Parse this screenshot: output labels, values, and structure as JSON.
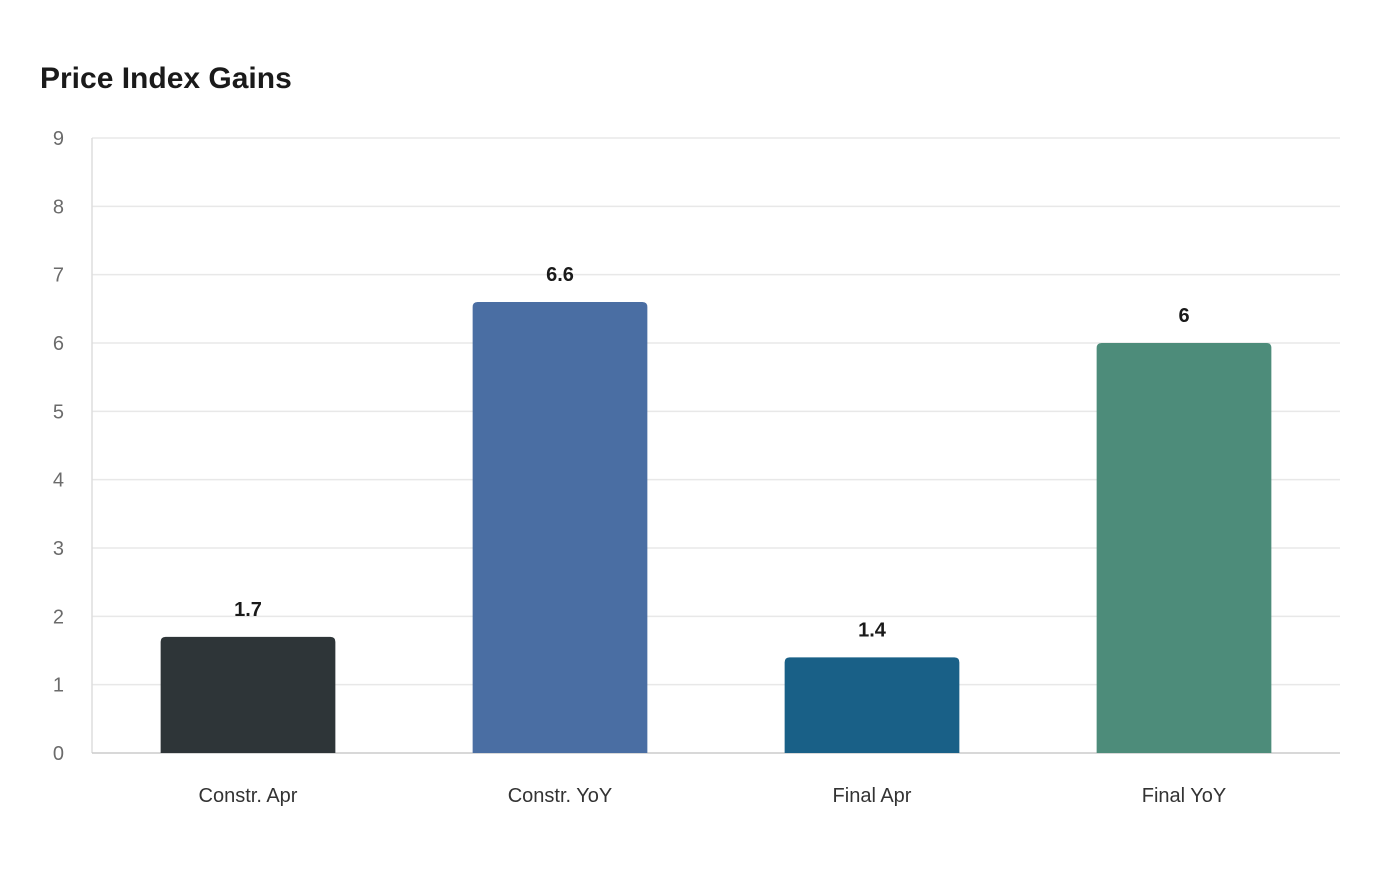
{
  "chart_data": {
    "type": "bar",
    "title": "Price Index Gains",
    "categories": [
      "Constr. Apr",
      "Constr. YoY",
      "Final Apr",
      "Final YoY"
    ],
    "values": [
      1.7,
      6.6,
      1.4,
      6
    ],
    "colors": [
      "#2e3538",
      "#4a6ea3",
      "#196087",
      "#4d8c7a"
    ],
    "xlabel": "",
    "ylabel": "",
    "ylim": [
      0,
      9
    ],
    "yticks": [
      0,
      1,
      2,
      3,
      4,
      5,
      6,
      7,
      8,
      9
    ],
    "grid": true,
    "legend": "none",
    "data_labels": true
  }
}
